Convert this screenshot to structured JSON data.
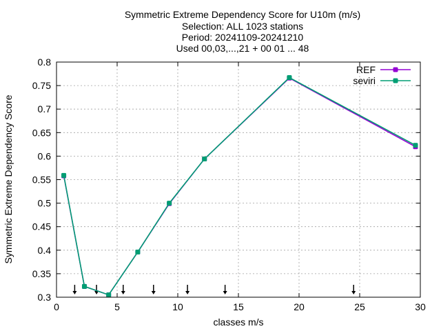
{
  "chart_data": {
    "type": "line",
    "title_lines": [
      "Symmetric Extreme Dependency Score  for U10m (m/s)",
      "Selection: ALL    1023 stations",
      "Period: 20241109-20241210",
      "Used 00,03,...,21 + 00 01 ... 48"
    ],
    "xlabel": "classes m/s",
    "ylabel": "Symmetric Extreme Dependency Score",
    "xlim": [
      0,
      30
    ],
    "ylim": [
      0.3,
      0.8
    ],
    "xticks": [
      0,
      5,
      10,
      15,
      20,
      25,
      30
    ],
    "xtick_labels": [
      "0",
      "5",
      "10",
      "15",
      "20",
      "25",
      "30"
    ],
    "yticks": [
      0.3,
      0.35,
      0.4,
      0.45,
      0.5,
      0.55,
      0.6,
      0.65,
      0.7,
      0.75,
      0.8
    ],
    "ytick_labels": [
      "0.3",
      "0.35",
      "0.4",
      "0.45",
      "0.5",
      "0.55",
      "0.6",
      "0.65",
      "0.7",
      "0.75",
      "0.8"
    ],
    "grid": true,
    "legend_position": "top-right",
    "class_markers_x": [
      1.5,
      3.3,
      5.5,
      8.0,
      10.8,
      13.9,
      24.5
    ],
    "series": [
      {
        "name": "REF",
        "color": "#9400d3",
        "x": [
          0.6,
          2.3,
          4.3,
          6.7,
          9.3,
          12.2,
          19.2,
          29.6
        ],
        "y": [
          0.558,
          0.323,
          0.305,
          0.396,
          0.499,
          0.594,
          0.766,
          0.62
        ]
      },
      {
        "name": "seviri",
        "color": "#009e73",
        "x": [
          0.6,
          2.3,
          4.3,
          6.7,
          9.3,
          12.2,
          19.2,
          29.6
        ],
        "y": [
          0.559,
          0.323,
          0.305,
          0.396,
          0.5,
          0.594,
          0.767,
          0.623
        ]
      }
    ]
  }
}
